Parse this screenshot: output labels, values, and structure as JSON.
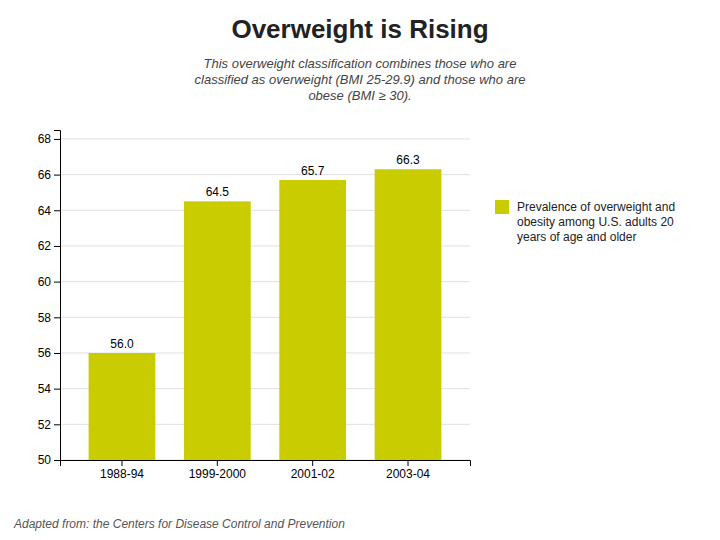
{
  "chart_data": {
    "type": "bar",
    "title": "Overweight is Rising",
    "subtitle": "This overweight classification combines those who are\nclassified as overweight (BMI 25-29.9) and those who are\nobese (BMI ≥ 30).",
    "footnote": "Adapted from: the Centers for Disease Control and Prevention",
    "categories": [
      "1988-94",
      "1999-2000",
      "2001-02",
      "2003-04"
    ],
    "series": [
      {
        "name": "Prevalence of overweight and\nobesity among U.S. adults 20\nyears of age and older",
        "color": "#c8cc00",
        "values": [
          56.0,
          64.5,
          65.7,
          66.3
        ],
        "value_labels": [
          "56.0",
          "64.5",
          "65.7",
          "66.3"
        ]
      }
    ],
    "ylim": [
      50,
      68.5
    ],
    "yticks": [
      50,
      52,
      54,
      56,
      58,
      60,
      62,
      64,
      66,
      68
    ],
    "grid": true,
    "legend": "right",
    "data_labels": true
  }
}
